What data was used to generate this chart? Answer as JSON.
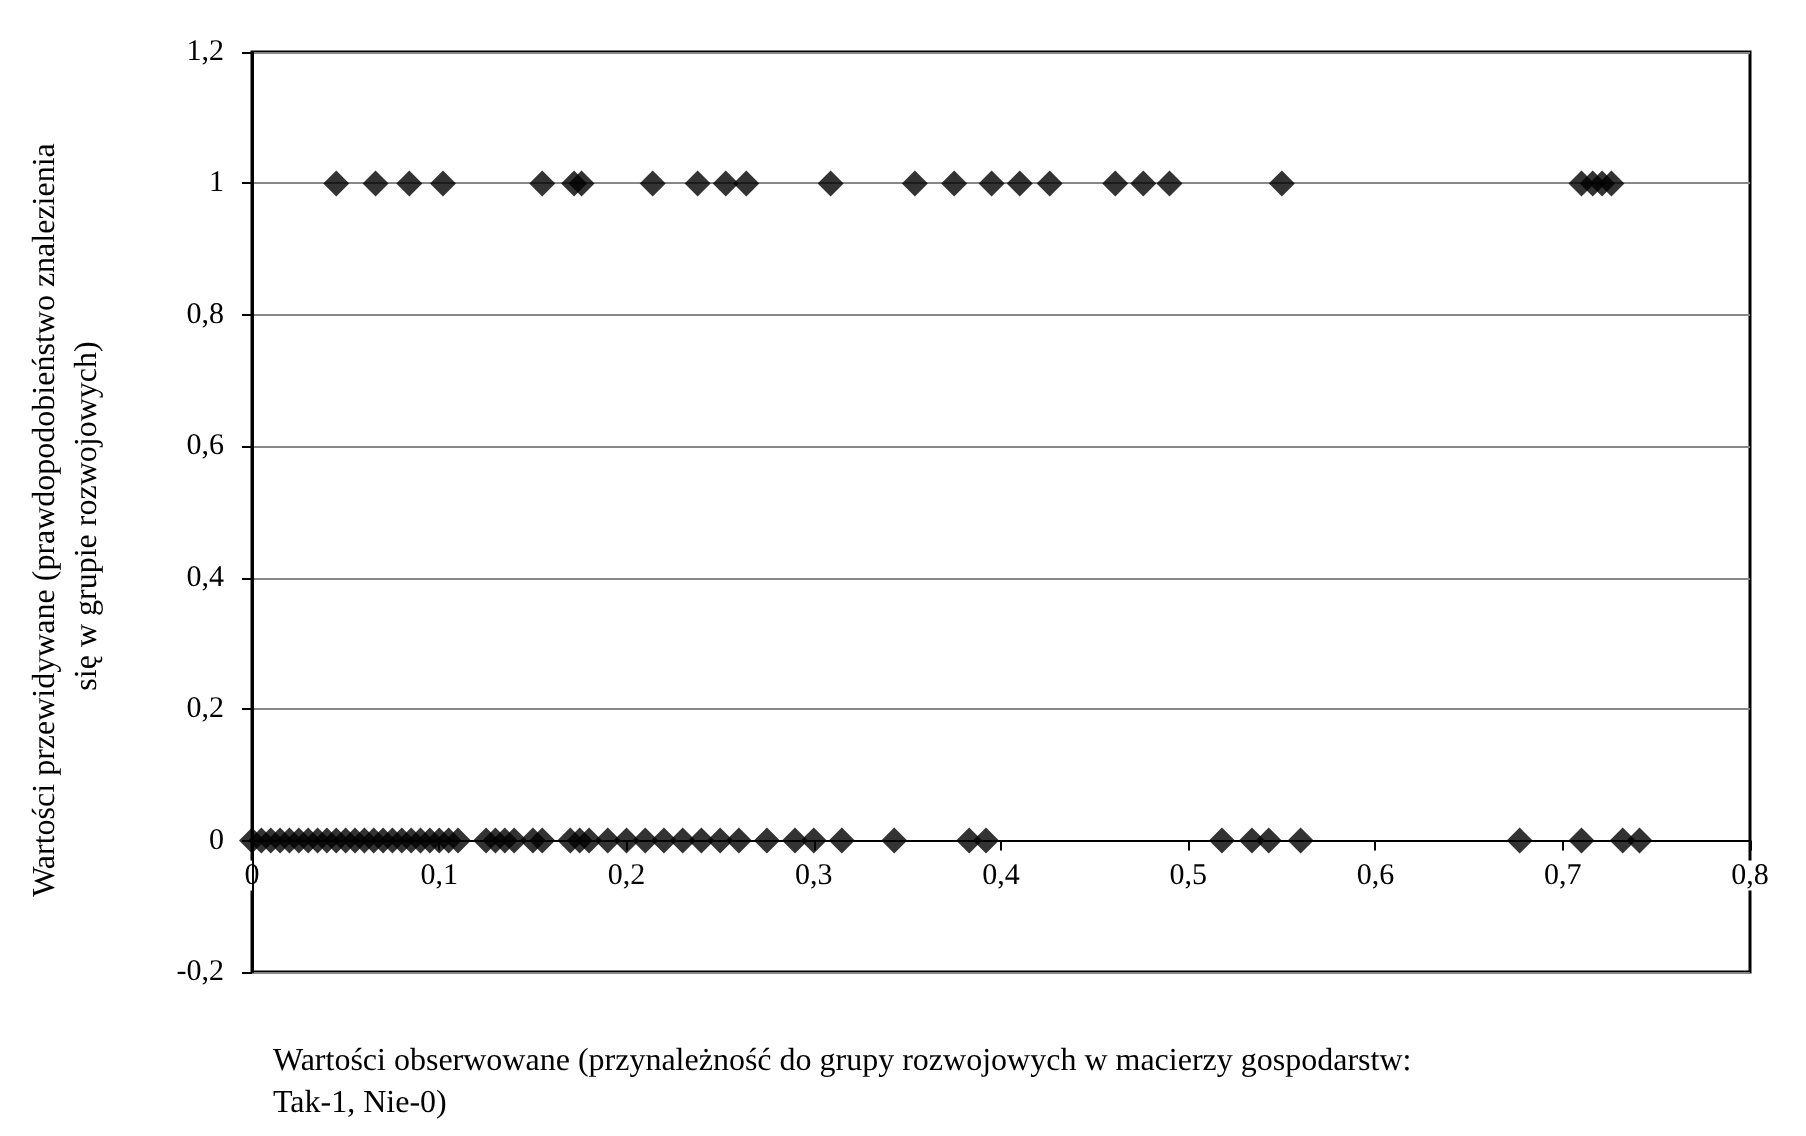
{
  "chart_data": {
    "type": "scatter",
    "xlabel": "Wartości obserwowane (przynależność do grupy rozwojowych w macierzy gospodarstw: Tak-1, Nie-0)",
    "ylabel": "Wartości przewidywane (prawdopodobieństwo znalezienia się w grupie rozwojowych)",
    "series": [
      {
        "color": "#000000",
        "x": [
          0.045,
          0.066,
          0.084,
          0.102,
          0.155,
          0.172,
          0.176,
          0.214,
          0.238,
          0.253,
          0.264,
          0.309,
          0.354,
          0.375,
          0.395,
          0.41,
          0.426,
          0.461,
          0.476,
          0.49,
          0.55,
          0.71,
          0.716,
          0.721,
          0.726
        ],
        "values": [
          1,
          1,
          1,
          1,
          1,
          1,
          1,
          1,
          1,
          1,
          1,
          1,
          1,
          1,
          1,
          1,
          1,
          1,
          1,
          1,
          1,
          1,
          1,
          1,
          1
        ]
      },
      {
        "color": "#000000",
        "x": [
          0,
          0.005,
          0.01,
          0.015,
          0.02,
          0.025,
          0.03,
          0.035,
          0.04,
          0.045,
          0.05,
          0.055,
          0.06,
          0.065,
          0.07,
          0.075,
          0.08,
          0.085,
          0.09,
          0.095,
          0.1,
          0.105,
          0.11,
          0.125,
          0.13,
          0.135,
          0.14,
          0.15,
          0.155,
          0.17,
          0.175,
          0.18,
          0.19,
          0.2,
          0.21,
          0.22,
          0.23,
          0.24,
          0.25,
          0.26,
          0.275,
          0.29,
          0.3,
          0.315,
          0.343,
          0.383,
          0.392,
          0.518,
          0.534,
          0.543,
          0.56,
          0.677,
          0.71,
          0.732,
          0.741
        ],
        "values": [
          0,
          0,
          0,
          0,
          0,
          0,
          0,
          0,
          0,
          0,
          0,
          0,
          0,
          0,
          0,
          0,
          0,
          0,
          0,
          0,
          0,
          0,
          0,
          0,
          0,
          0,
          0,
          0,
          0,
          0,
          0,
          0,
          0,
          0,
          0,
          0,
          0,
          0,
          0,
          0,
          0,
          0,
          0,
          0,
          0,
          0,
          0,
          0,
          0,
          0,
          0,
          0,
          0,
          0,
          0
        ]
      }
    ],
    "xlim": [
      0,
      0.8
    ],
    "xticks": [
      0,
      {
        "value": 0.1,
        "label": "0,1"
      },
      {
        "value": 0.2,
        "label": "0,2"
      },
      {
        "value": 0.3,
        "label": "0,3"
      },
      {
        "value": 0.4,
        "label": "0,4"
      },
      {
        "value": 0.5,
        "label": "0,5"
      },
      {
        "value": 0.6,
        "label": "0,6"
      },
      {
        "value": 0.7,
        "label": "0,7"
      },
      {
        "value": 0.8,
        "label": "0,8"
      }
    ],
    "ylim": [
      -0.2,
      1.2
    ],
    "yticks": [
      {
        "value": -0.2,
        "label": "-0,2"
      },
      0,
      {
        "value": 0.2,
        "label": "0,2"
      },
      {
        "value": 0.4,
        "label": "0,4"
      },
      {
        "value": 0.6,
        "label": "0,6"
      },
      {
        "value": 0.8,
        "label": "0,8"
      },
      1,
      {
        "value": 1.2,
        "label": "1,2"
      }
    ],
    "grid": "y",
    "marker": "diamond"
  }
}
